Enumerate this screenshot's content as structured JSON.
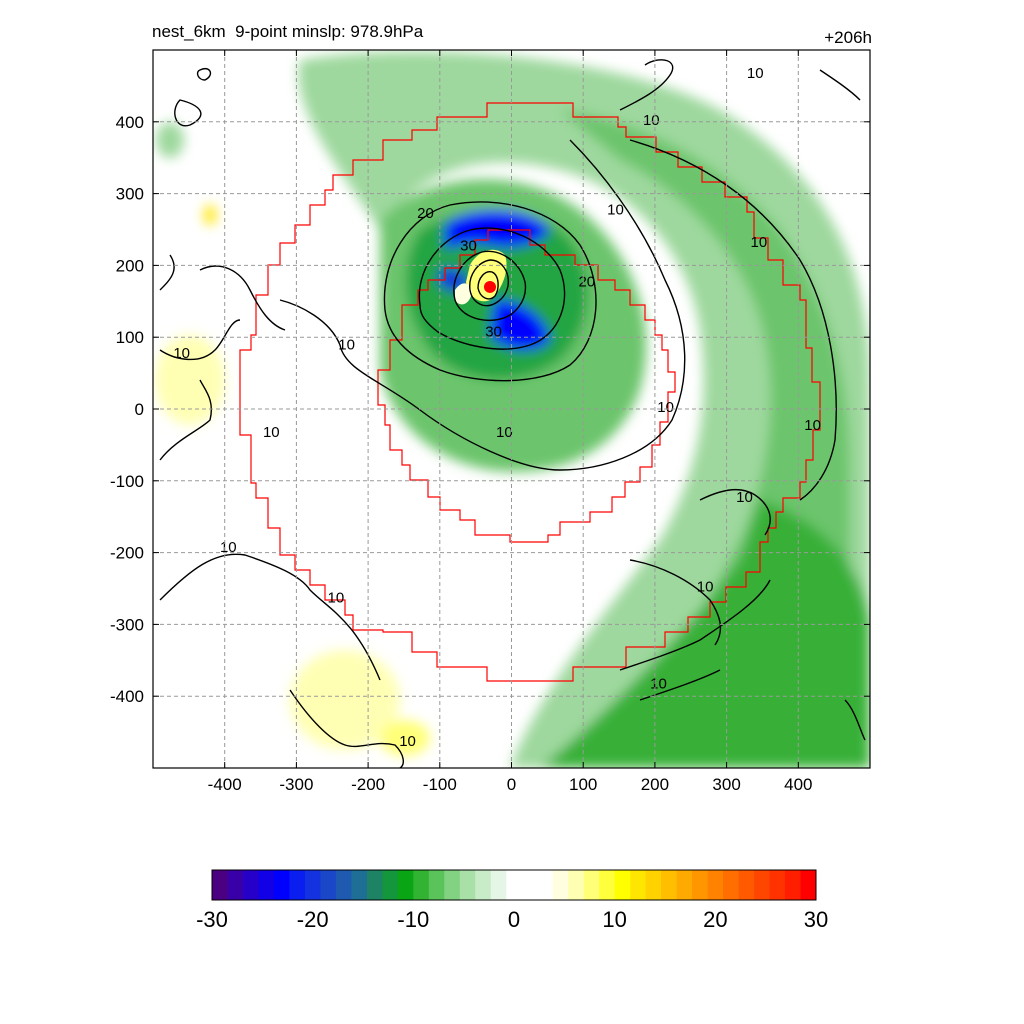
{
  "title_left": "nest_6km  9-point minslp: 978.9hPa",
  "title_right": "+206h",
  "chart_data": {
    "type": "heatmap",
    "title": "nest_6km  9-point minslp: 978.9hPa",
    "forecast_lead": "+206h",
    "xlim": [
      -500,
      500
    ],
    "ylim": [
      -500,
      500
    ],
    "x_ticks": [
      -400,
      -300,
      -200,
      -100,
      0,
      100,
      200,
      300,
      400
    ],
    "y_ticks": [
      -400,
      -300,
      -200,
      -100,
      0,
      100,
      200,
      300,
      400
    ],
    "grid": true,
    "center_marker": {
      "x": -30,
      "y": 170,
      "color": "#ff0000"
    },
    "colorbar": {
      "range": [
        -30,
        30
      ],
      "labels": [
        "-30",
        "-20",
        "-10",
        "0",
        "10",
        "20",
        "30"
      ],
      "colors": [
        "#4b0082",
        "#3a00a8",
        "#2600c8",
        "#1200e6",
        "#0000ff",
        "#0a1ef0",
        "#1432e0",
        "#1a46c8",
        "#1e5ab0",
        "#1e6e96",
        "#1e8264",
        "#14963c",
        "#0aa514",
        "#32b432",
        "#5ac35a",
        "#82d282",
        "#a8e0a8",
        "#c8ecc8",
        "#e6f6e6",
        "#ffffff",
        "#ffffff",
        "#ffffff",
        "#ffffe0",
        "#ffffb4",
        "#ffff78",
        "#ffff3c",
        "#ffff00",
        "#ffe600",
        "#ffd200",
        "#ffbe00",
        "#ffaa00",
        "#ff9600",
        "#ff8200",
        "#ff6e00",
        "#ff5a00",
        "#ff4600",
        "#ff3200",
        "#ff1e00",
        "#ff0000"
      ]
    },
    "contour_levels": [
      10,
      20,
      30
    ],
    "contour_labels": [
      {
        "text": "10",
        "x": -230,
        "y": 87
      },
      {
        "text": "20",
        "x": -120,
        "y": 270
      },
      {
        "text": "30",
        "x": -60,
        "y": 225
      },
      {
        "text": "20",
        "x": 105,
        "y": 175
      },
      {
        "text": "30",
        "x": -25,
        "y": 105
      },
      {
        "text": "10",
        "x": -460,
        "y": 75
      },
      {
        "text": "10",
        "x": -335,
        "y": -35
      },
      {
        "text": "10",
        "x": -395,
        "y": -195
      },
      {
        "text": "10",
        "x": -245,
        "y": -265
      },
      {
        "text": "10",
        "x": 195,
        "y": 400
      },
      {
        "text": "10",
        "x": 145,
        "y": 275
      },
      {
        "text": "10",
        "x": 340,
        "y": 465
      },
      {
        "text": "10",
        "x": 345,
        "y": 230
      },
      {
        "text": "10",
        "x": 215,
        "y": 0
      },
      {
        "text": "10",
        "x": -10,
        "y": -35
      },
      {
        "text": "10",
        "x": 420,
        "y": -25
      },
      {
        "text": "10",
        "x": 325,
        "y": -125
      },
      {
        "text": "10",
        "x": 270,
        "y": -250
      },
      {
        "text": "10",
        "x": 205,
        "y": -385
      },
      {
        "text": "10",
        "x": -145,
        "y": -465
      }
    ]
  }
}
